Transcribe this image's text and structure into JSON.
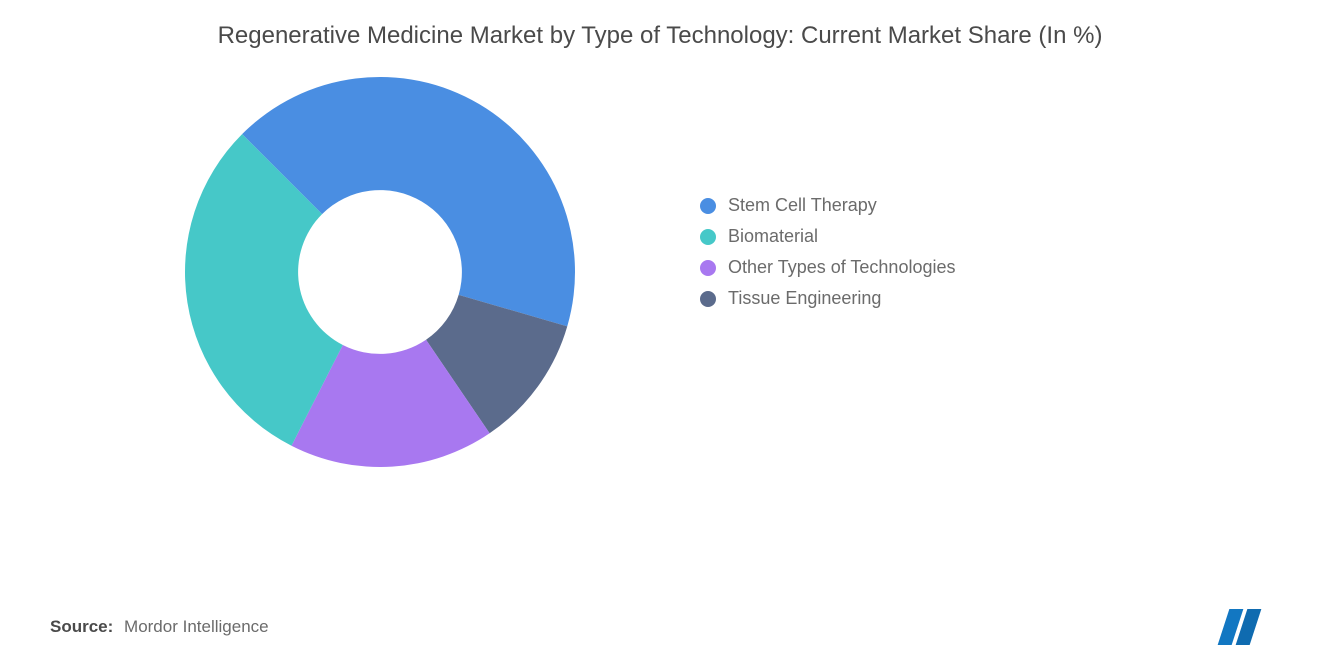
{
  "title": "Regenerative Medicine Market by Type of Technology: Current Market Share (In %)",
  "chart": {
    "type": "donut",
    "inner_radius_ratio": 0.42,
    "outer_radius": 195,
    "start_angle_deg": 0,
    "background_color": "#ffffff",
    "slices": [
      {
        "label": "Stem Cell Therapy",
        "value": 42,
        "color": "#4a8ee2"
      },
      {
        "label": "Tissue Engineering",
        "value": 11,
        "color": "#5b6b8c"
      },
      {
        "label": "Other Types of Technologies",
        "value": 17,
        "color": "#a878f0"
      },
      {
        "label": "Biomaterial",
        "value": 30,
        "color": "#46c8c8"
      }
    ],
    "legend_order": [
      "Stem Cell Therapy",
      "Biomaterial",
      "Other Types of Technologies",
      "Tissue Engineering"
    ],
    "legend_fontsize_pt": 14,
    "title_fontsize_pt": 18,
    "title_color": "#4a4a4a",
    "legend_text_color": "#6b6b6b"
  },
  "source": {
    "label": "Source:",
    "value": "Mordor Intelligence"
  },
  "logo": {
    "bar_color": "#1277c2",
    "bar2_color": "#0f6bb0"
  }
}
